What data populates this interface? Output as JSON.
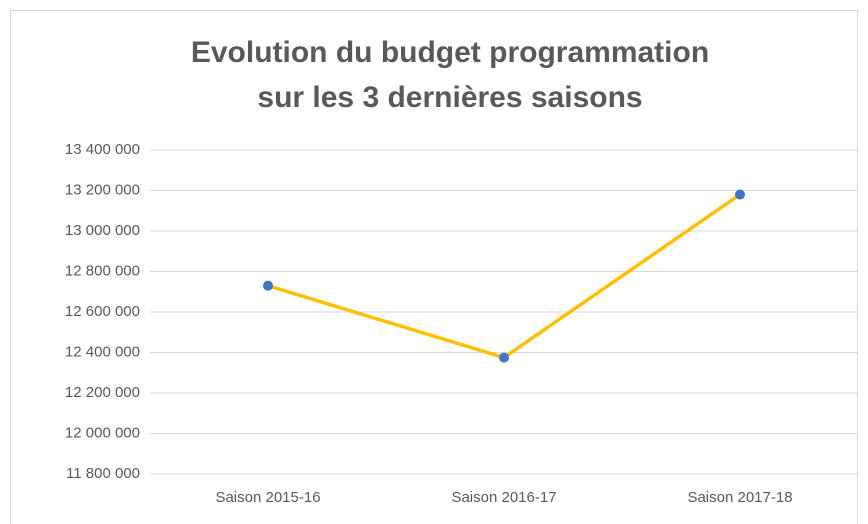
{
  "chart_data": {
    "type": "line",
    "title": "Evolution du budget programmation sur les 3 dernières saisons",
    "categories": [
      "Saison 2015-16",
      "Saison 2016-17",
      "Saison 2017-18"
    ],
    "values": [
      12730000,
      12375000,
      13180000
    ],
    "color": "#ffc000",
    "marker_color": "#4472c4",
    "ylim": [
      11800000,
      13400000
    ],
    "yticks": [
      {
        "value": 11800000,
        "label": "11 800 000"
      },
      {
        "value": 12000000,
        "label": "12 000 000"
      },
      {
        "value": 12200000,
        "label": "12 200 000"
      },
      {
        "value": 12400000,
        "label": "12 400 000"
      },
      {
        "value": 12600000,
        "label": "12 600 000"
      },
      {
        "value": 12800000,
        "label": "12 800 000"
      },
      {
        "value": 13000000,
        "label": "13 000 000"
      },
      {
        "value": 13200000,
        "label": "13 200 000"
      },
      {
        "value": 13400000,
        "label": "13 400 000"
      }
    ],
    "grid": true
  }
}
